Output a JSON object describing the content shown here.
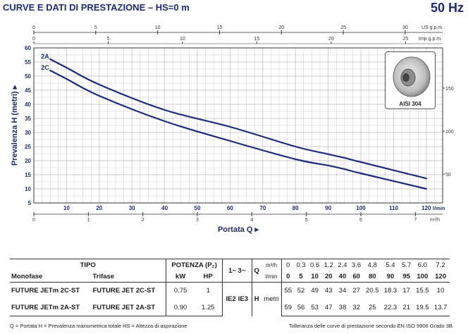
{
  "header": {
    "title": "CURVE E DATI DI PRESTAZIONE  –  HS=0 m",
    "frequency": "50 Hz"
  },
  "colors": {
    "curve": "#1f2a78",
    "grid": "#bbbbbb",
    "axis": "#333333"
  },
  "chart_data": {
    "type": "line",
    "xlabel": "Portata  Q",
    "ylabel": "Prevalenza  H  (metri)",
    "x_unit_main": "l/min",
    "x_unit_m3h": "m³/h",
    "x_unit_us": "US g.p.m.",
    "x_unit_imp": "Imp g.p.m.",
    "y_unit_right": "feet",
    "xlim": [
      0,
      125
    ],
    "ylim": [
      5,
      60
    ],
    "x_ticks": [
      10,
      20,
      30,
      40,
      50,
      60,
      70,
      80,
      90,
      100,
      110,
      120
    ],
    "y_ticks": [
      5,
      10,
      15,
      20,
      25,
      30,
      35,
      40,
      45,
      50,
      55,
      60
    ],
    "m3h_ticks": [
      0,
      1,
      2,
      3,
      4,
      5,
      6,
      7
    ],
    "us_gpm_ticks": [
      0,
      5,
      10,
      15,
      20,
      25,
      30
    ],
    "imp_gpm_ticks": [
      0,
      5,
      10,
      15,
      20,
      25
    ],
    "feet_ticks": [
      50,
      100,
      150
    ],
    "grid": true,
    "series": [
      {
        "name": "2A",
        "x": [
          5,
          10,
          20,
          40,
          60,
          80,
          90,
          95,
          100,
          120
        ],
        "y": [
          56,
          53,
          47,
          38,
          32,
          25,
          22.3,
          21,
          19.5,
          13.7
        ]
      },
      {
        "name": "2C",
        "x": [
          5,
          10,
          20,
          40,
          60,
          80,
          90,
          95,
          100,
          120
        ],
        "y": [
          52,
          49,
          43,
          34,
          27,
          20.5,
          18.3,
          17,
          15.5,
          10
        ]
      }
    ],
    "inset_label": "AISI 304"
  },
  "table": {
    "tipo": "TIPO",
    "potenza": "POTENZA (P₂)",
    "col_monofase": "Monofase",
    "col_trifase": "Trifase",
    "col_kw": "kW",
    "col_hp": "HP",
    "col_phase": "1~ 3~",
    "q_label": "Q",
    "q_unit_m3h": "m³/h",
    "q_unit_lmin": "l/min",
    "h_label": "H",
    "h_unit": "metri",
    "ie_a": "IE2",
    "ie_b": "IE3",
    "q_m3h": [
      "0",
      "0.3",
      "0.6",
      "1.2",
      "2.4",
      "3.6",
      "4.8",
      "5.4",
      "5.7",
      "6.0",
      "7.2"
    ],
    "q_lmin": [
      "0",
      "5",
      "10",
      "20",
      "40",
      "60",
      "80",
      "90",
      "95",
      "100",
      "120"
    ],
    "rows": [
      {
        "mono": "FUTURE JETm 2C-ST",
        "tri": "FUTURE JET 2C-ST",
        "kw": "0.75",
        "hp": "1",
        "h": [
          "55",
          "52",
          "49",
          "43",
          "34",
          "27",
          "20.5",
          "18.3",
          "17",
          "15.5",
          "10"
        ]
      },
      {
        "mono": "FUTURE JETm 2A-ST",
        "tri": "FUTURE JET 2A-ST",
        "kw": "0.90",
        "hp": "1.25",
        "h": [
          "59",
          "56",
          "53",
          "47",
          "38",
          "32",
          "25",
          "22.3",
          "21",
          "19.5",
          "13.7"
        ]
      }
    ]
  },
  "footer": {
    "legend": "Q = Portata   H = Prevalenza manometrica totale   HS = Altezza di aspirazione",
    "tolerance": "Tolleranza delle curve di prestazione secondo EN ISO 9906 Grado 3B."
  }
}
